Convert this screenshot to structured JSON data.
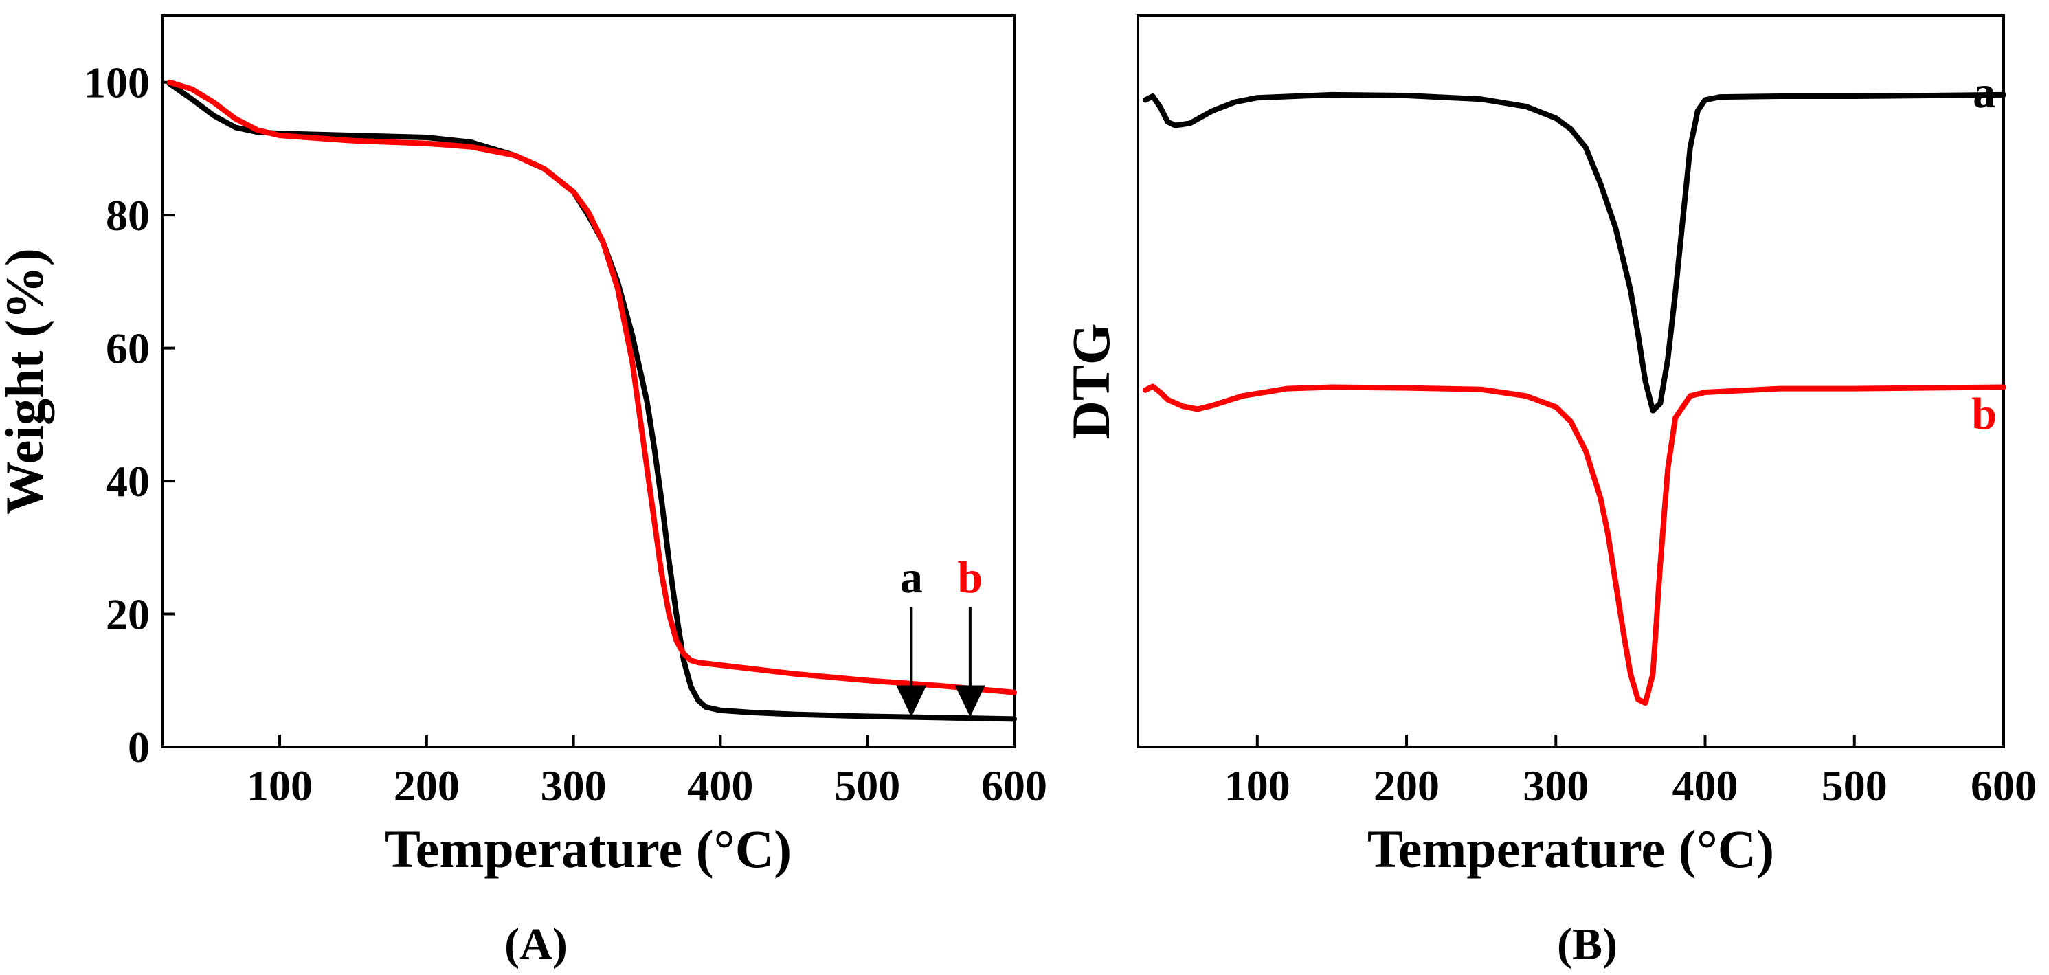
{
  "chart_data": [
    {
      "panel": "A",
      "type": "line",
      "xlabel": "Temperature (°C)",
      "ylabel": "Weight (%)",
      "xlim": [
        20,
        600
      ],
      "ylim": [
        0,
        110
      ],
      "xticks": [
        100,
        200,
        300,
        400,
        500,
        600
      ],
      "yticks": [
        0,
        20,
        40,
        60,
        80,
        100
      ],
      "x_tick_labels": [
        "100",
        "200",
        "300",
        "400",
        "500",
        "600"
      ],
      "y_tick_labels": [
        "0",
        "20",
        "40",
        "60",
        "80",
        "100"
      ],
      "caption_letter": "A",
      "annotations": [
        {
          "label": "a",
          "color": "#000000",
          "x": 530,
          "y_from": 21,
          "y_to": 4.5
        },
        {
          "label": "b",
          "color": "#ff0000",
          "x": 570,
          "y_from": 21,
          "y_to": 4.5
        }
      ],
      "series": [
        {
          "name": "a",
          "color": "#000000",
          "x": [
            25,
            40,
            55,
            70,
            85,
            100,
            150,
            200,
            230,
            260,
            280,
            300,
            310,
            320,
            330,
            340,
            350,
            355,
            360,
            365,
            370,
            375,
            380,
            385,
            390,
            400,
            420,
            450,
            500,
            550,
            600
          ],
          "y": [
            99.8,
            97.5,
            95,
            93.2,
            92.5,
            92.3,
            92.0,
            91.7,
            91.0,
            89.0,
            87.0,
            83.5,
            80.0,
            76.0,
            70.0,
            62.0,
            52.0,
            45.0,
            37.0,
            28.0,
            20.0,
            13.0,
            9.0,
            7.0,
            6.0,
            5.5,
            5.2,
            4.9,
            4.6,
            4.4,
            4.2
          ]
        },
        {
          "name": "b",
          "color": "#ff0000",
          "x": [
            25,
            40,
            55,
            70,
            85,
            100,
            150,
            200,
            230,
            260,
            280,
            300,
            310,
            320,
            330,
            340,
            345,
            350,
            355,
            360,
            365,
            370,
            375,
            380,
            385,
            400,
            450,
            500,
            550,
            600
          ],
          "y": [
            100,
            99.0,
            97.0,
            94.5,
            92.8,
            92.0,
            91.2,
            90.8,
            90.3,
            89.0,
            87.0,
            83.5,
            80.5,
            76.0,
            69.0,
            58.0,
            50.0,
            42.0,
            34.0,
            26.0,
            20.0,
            16.0,
            14.0,
            13.0,
            12.7,
            12.3,
            11.0,
            10.0,
            9.2,
            8.2
          ]
        }
      ]
    },
    {
      "panel": "B",
      "type": "line",
      "xlabel": "Temperature (°C)",
      "ylabel": "DTG",
      "xlim": [
        20,
        600
      ],
      "ylim": [
        0,
        100
      ],
      "xticks": [
        100,
        200,
        300,
        400,
        500,
        600
      ],
      "x_tick_labels": [
        "100",
        "200",
        "300",
        "400",
        "500",
        "600"
      ],
      "yticks": [],
      "caption_letter": "B",
      "series_labels": [
        {
          "label": "a",
          "color": "#000000",
          "x": 587,
          "y": 87.5
        },
        {
          "label": "b",
          "color": "#ff0000",
          "x": 587,
          "y": 43.5
        }
      ],
      "series": [
        {
          "name": "a",
          "color": "#000000",
          "x": [
            25,
            30,
            35,
            40,
            45,
            55,
            70,
            85,
            100,
            150,
            200,
            250,
            280,
            300,
            310,
            320,
            330,
            340,
            350,
            355,
            360,
            365,
            370,
            375,
            380,
            385,
            390,
            395,
            400,
            410,
            450,
            500,
            600
          ],
          "y": [
            88.5,
            89.0,
            87.5,
            85.5,
            85.0,
            85.3,
            87.0,
            88.2,
            88.8,
            89.2,
            89.1,
            88.6,
            87.6,
            86.0,
            84.5,
            82.0,
            77.0,
            71.0,
            62.5,
            56.5,
            50.0,
            46.0,
            47.0,
            53.0,
            62.0,
            72.0,
            82.0,
            87.0,
            88.5,
            88.9,
            89.0,
            89.0,
            89.2
          ]
        },
        {
          "name": "b",
          "color": "#ff0000",
          "x": [
            25,
            30,
            35,
            40,
            50,
            60,
            70,
            90,
            120,
            150,
            200,
            250,
            280,
            300,
            310,
            320,
            330,
            335,
            340,
            345,
            350,
            355,
            360,
            365,
            370,
            375,
            380,
            390,
            400,
            450,
            500,
            600
          ],
          "y": [
            48.8,
            49.3,
            48.5,
            47.5,
            46.6,
            46.2,
            46.7,
            48.0,
            49.0,
            49.2,
            49.1,
            48.9,
            48.0,
            46.5,
            44.5,
            40.5,
            34.0,
            29.0,
            22.5,
            16.0,
            10.0,
            6.5,
            6.0,
            10.0,
            25.0,
            38.0,
            45.0,
            48.0,
            48.5,
            49.0,
            49.0,
            49.2
          ]
        }
      ]
    }
  ]
}
